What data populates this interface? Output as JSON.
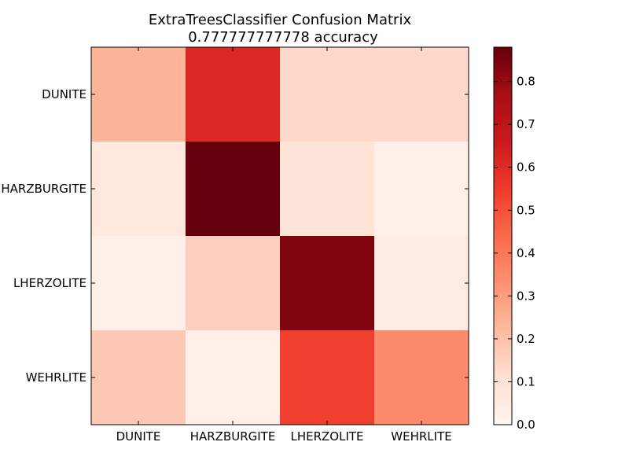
{
  "chart_data": {
    "type": "heatmap",
    "title": "ExtraTreesClassifier Confusion Matrix",
    "subtitle": "0.777777777778 accuracy",
    "xlabel": "",
    "ylabel": "",
    "x_categories": [
      "DUNITE",
      "HARZBURGITE",
      "LHERZOLITE",
      "WEHRLITE"
    ],
    "y_categories": [
      "DUNITE",
      "HARZBURGITE",
      "LHERZOLITE",
      "WEHRLITE"
    ],
    "values": [
      [
        0.24,
        0.61,
        0.13,
        0.13
      ],
      [
        0.07,
        0.88,
        0.09,
        0.03
      ],
      [
        0.03,
        0.16,
        0.84,
        0.05
      ],
      [
        0.18,
        0.03,
        0.54,
        0.35
      ]
    ],
    "colorbar": {
      "min": 0.0,
      "max": 0.88,
      "ticks": [
        "0.0",
        "0.1",
        "0.2",
        "0.3",
        "0.4",
        "0.5",
        "0.6",
        "0.7",
        "0.8"
      ],
      "colormap": "Reds"
    },
    "grid": false
  }
}
